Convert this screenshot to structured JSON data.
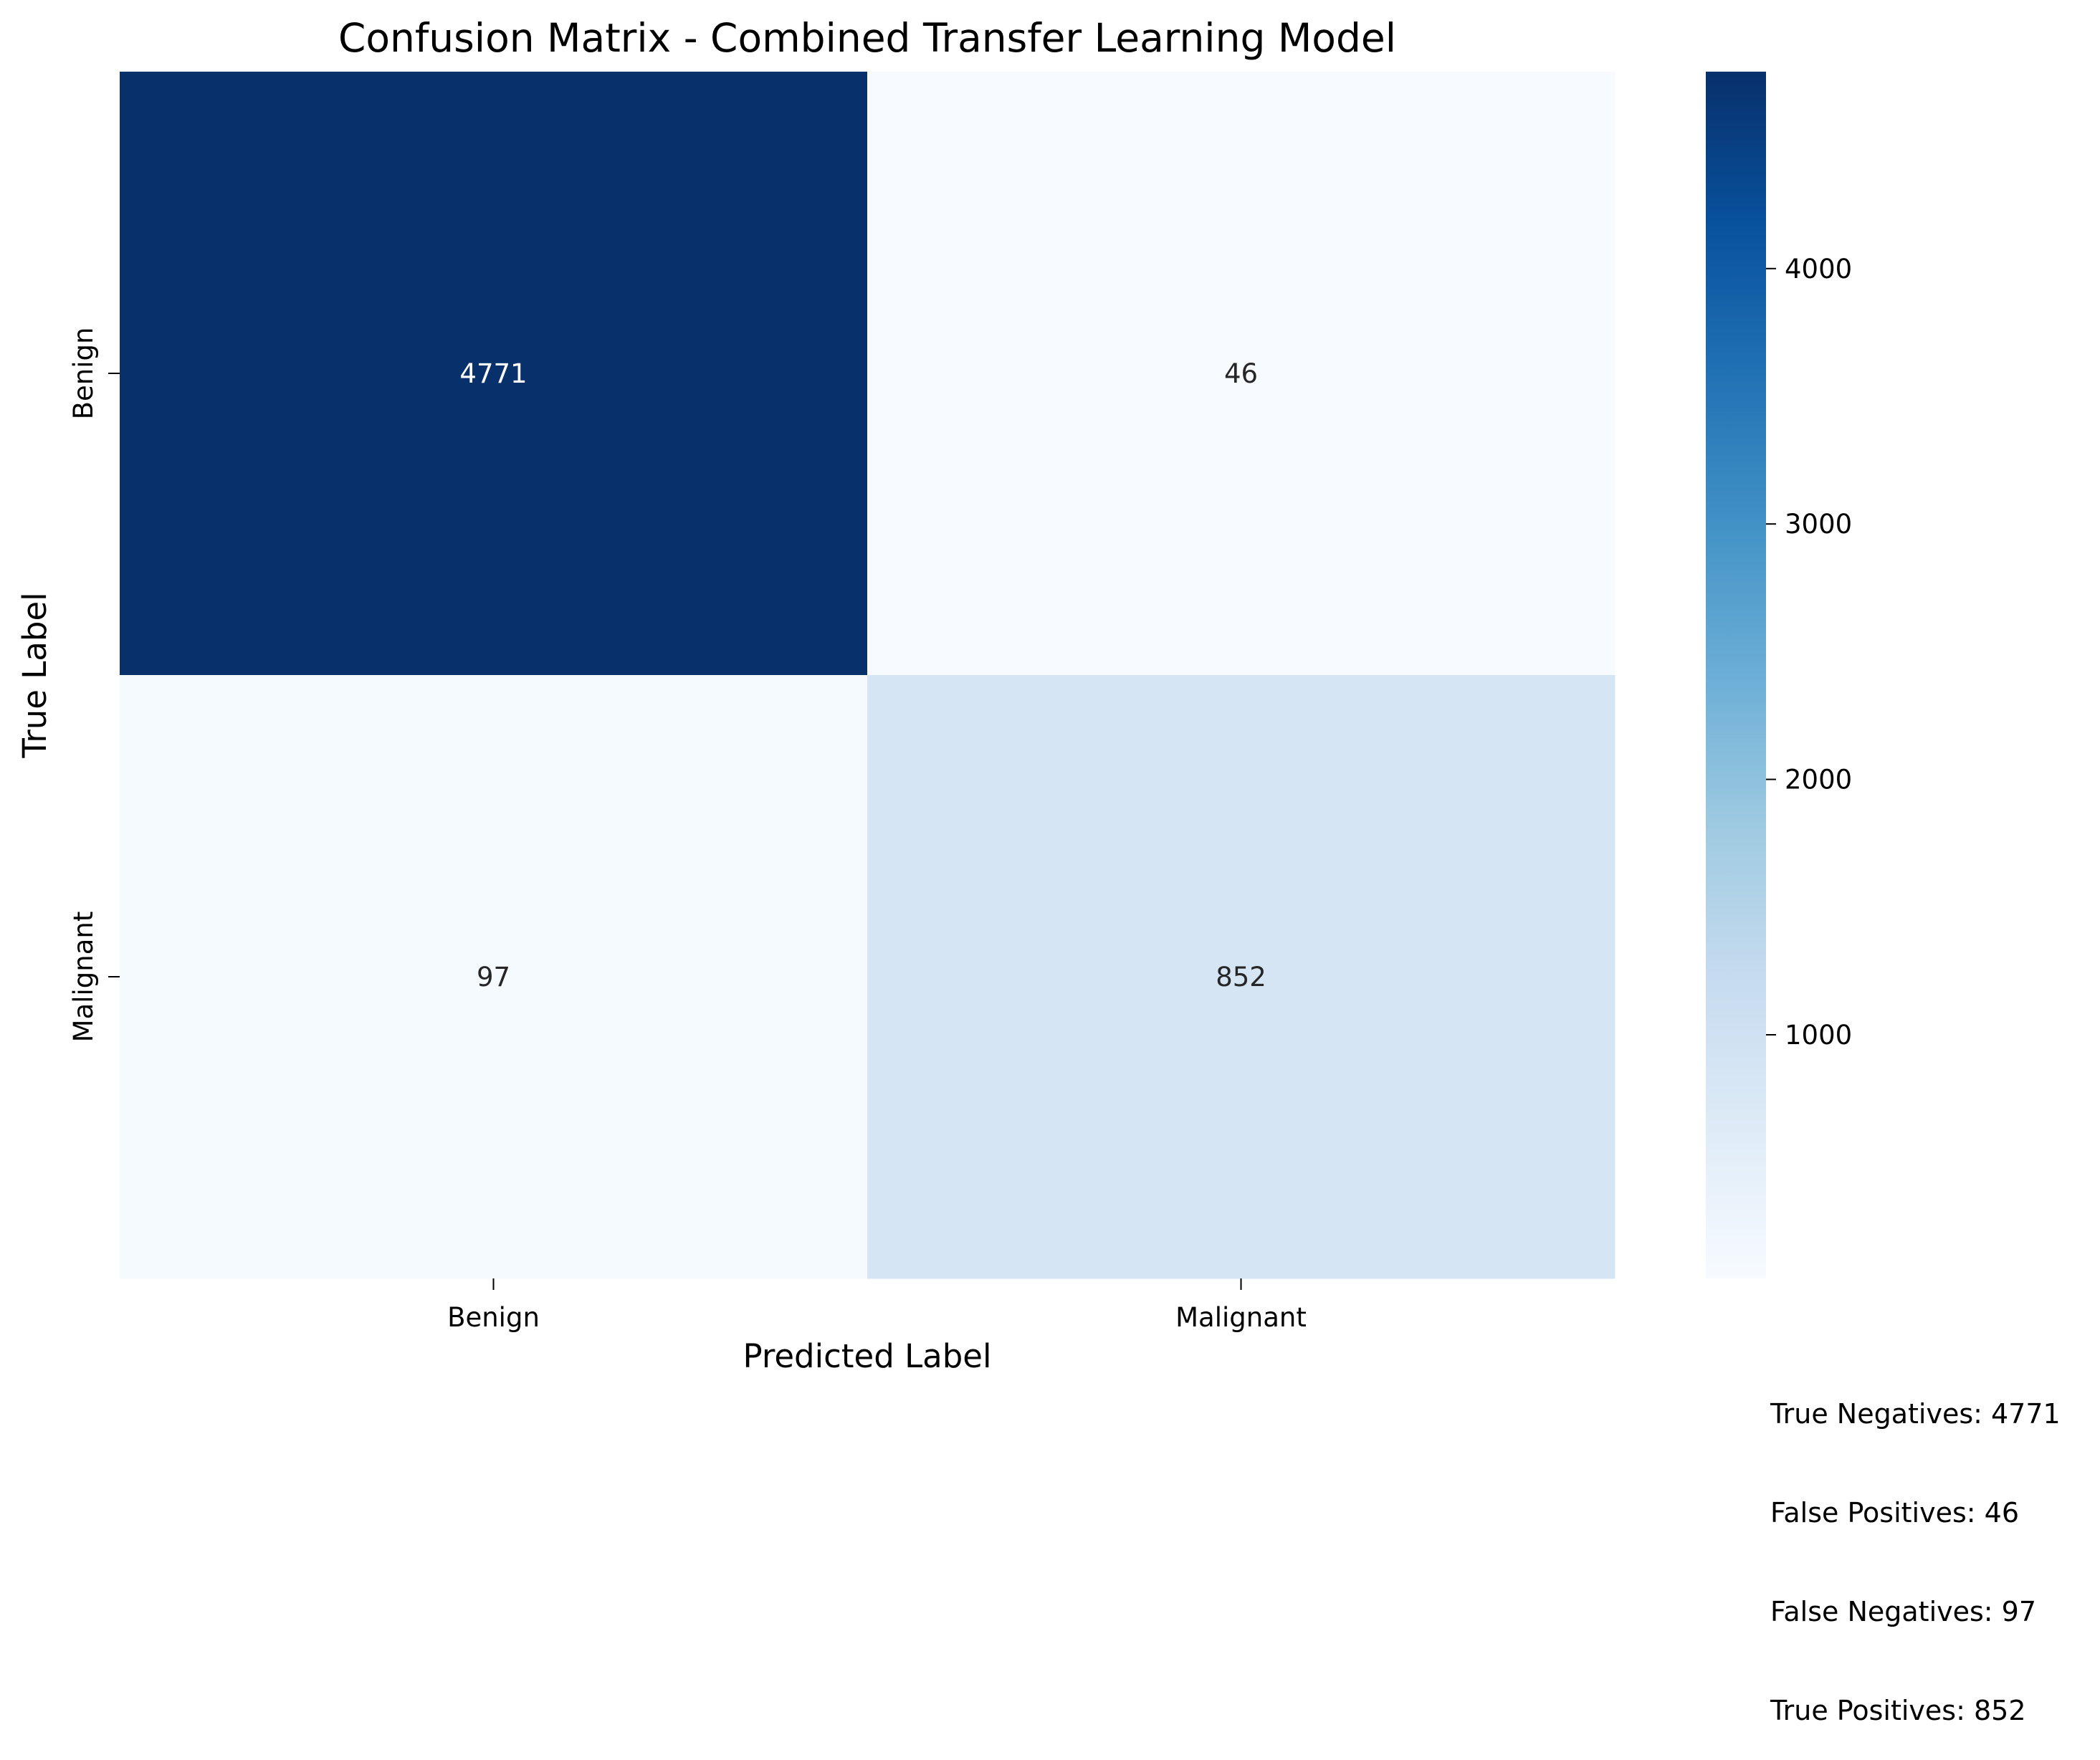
{
  "chart_data": {
    "type": "heatmap",
    "title": "Confusion Matrix - Combined Transfer Learning Model",
    "xlabel": "Predicted Label",
    "ylabel": "True Label",
    "x_categories": [
      "Benign",
      "Malignant"
    ],
    "y_categories": [
      "Benign",
      "Malignant"
    ],
    "values": [
      [
        4771,
        46
      ],
      [
        97,
        852
      ]
    ],
    "colormap": "Blues",
    "color_low": "#f7fbff",
    "color_high": "#08306b",
    "colorbar": {
      "range": [
        46,
        4771
      ],
      "ticks": [
        1000,
        2000,
        3000,
        4000
      ]
    },
    "annotations": [
      "True Negatives: 4771",
      "False Positives: 46",
      "False Negatives: 97",
      "True Positives: 852"
    ]
  }
}
